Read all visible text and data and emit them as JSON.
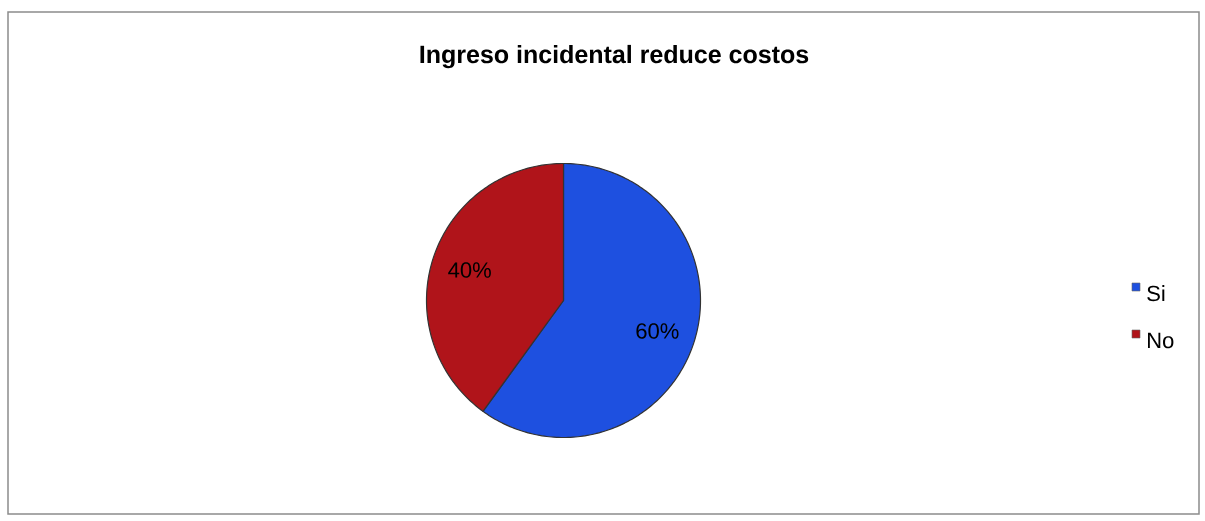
{
  "chart_data": {
    "type": "pie",
    "title": "Ingreso incidental reduce costos",
    "categories": [
      "Si",
      "No"
    ],
    "values": [
      60,
      40
    ],
    "colors": [
      "#1e50e0",
      "#b0141a"
    ],
    "value_labels": [
      "60%",
      "40%"
    ],
    "legend": "right"
  }
}
